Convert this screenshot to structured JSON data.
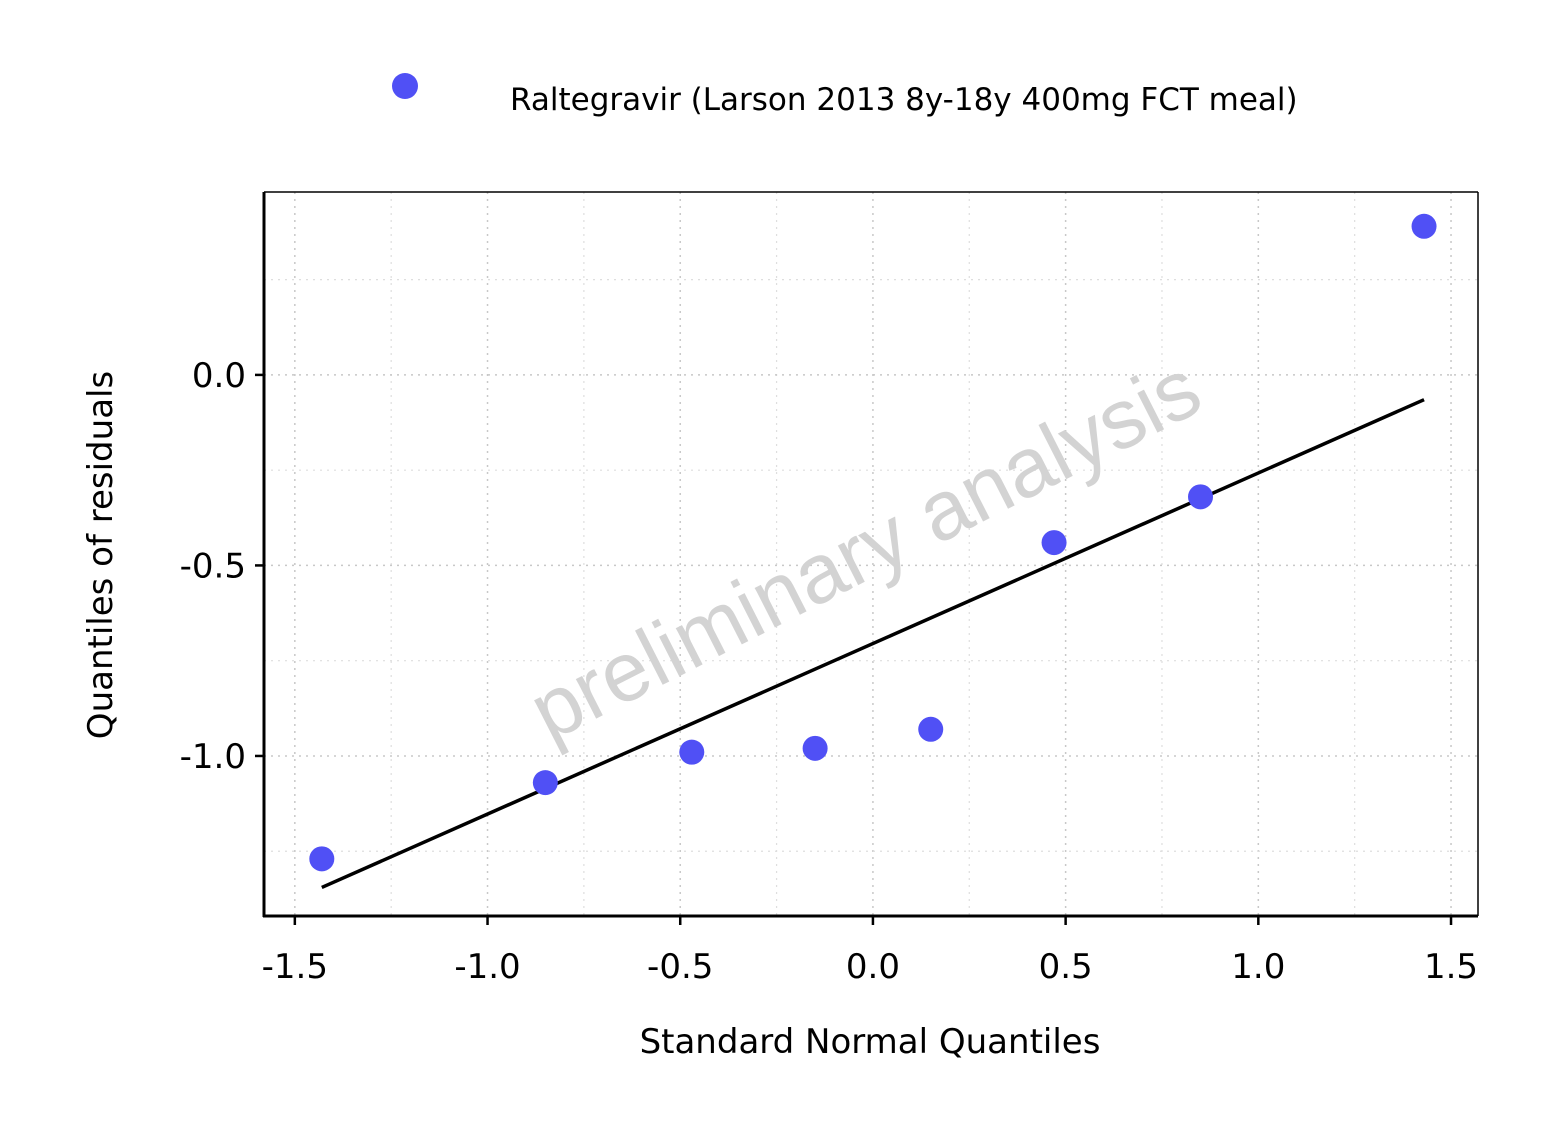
{
  "chart_data": {
    "type": "scatter",
    "xlabel": "Standard Normal Quantiles",
    "ylabel": "Quantiles of residuals",
    "xlim": [
      -1.58,
      1.57
    ],
    "ylim": [
      -1.42,
      0.48
    ],
    "x_ticks": [
      -1.5,
      -1.0,
      -0.5,
      0.0,
      0.5,
      1.0,
      1.5
    ],
    "x_tick_labels": [
      "-1.5",
      "-1.0",
      "-0.5",
      "0.0",
      "0.5",
      "1.0",
      "1.5"
    ],
    "y_ticks": [
      -1.0,
      -0.5,
      0.0
    ],
    "y_tick_labels": [
      "-1.0",
      "-0.5",
      "0.0"
    ],
    "x_minor_grid": [
      -1.25,
      -0.75,
      -0.25,
      0.25,
      0.75,
      1.25
    ],
    "y_minor_grid": [
      -1.25,
      -0.75,
      -0.25,
      0.25
    ],
    "grid": true,
    "legend_position": "top",
    "series": [
      {
        "name": "Raltegravir (Larson 2013 8y-18y 400mg FCT meal)",
        "color": "#5050f5",
        "x": [
          -1.43,
          -0.85,
          -0.47,
          -0.15,
          0.15,
          0.47,
          0.85,
          1.43
        ],
        "y": [
          -1.27,
          -1.07,
          -0.99,
          -0.98,
          -0.93,
          -0.44,
          -0.32,
          0.39
        ]
      }
    ],
    "reference_line": {
      "color": "#000000",
      "x": [
        -1.43,
        1.43
      ],
      "y": [
        -1.345,
        -0.065
      ]
    },
    "watermark": "preliminary analysis"
  }
}
